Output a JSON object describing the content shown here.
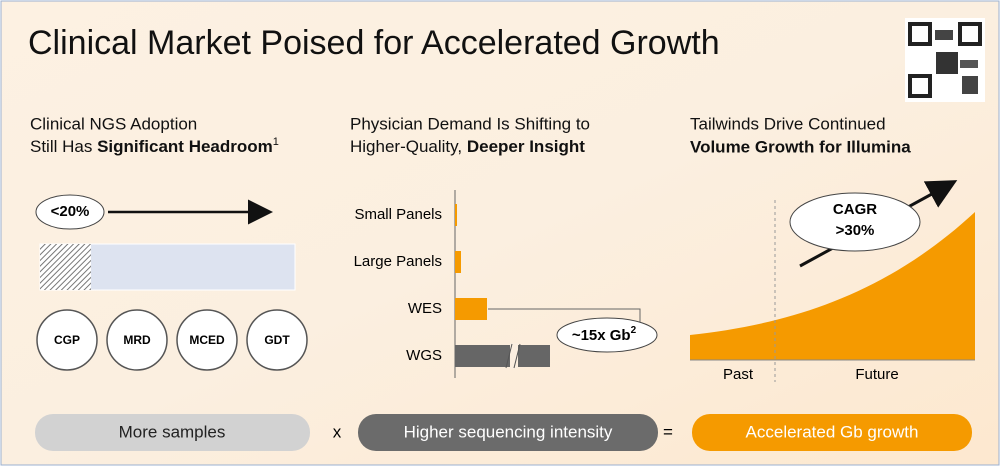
{
  "title": "Clinical Market Poised for Accelerated Growth",
  "left": {
    "heading": [
      "Clinical NGS Adoption",
      "Still Has "
    ],
    "heading_bold": "Significant Headroom",
    "footnote": "1",
    "adoption": {
      "label": "<20%",
      "value": 20
    },
    "applications": [
      "CGP",
      "MRD",
      "MCED",
      "GDT"
    ]
  },
  "middle": {
    "heading": [
      "Physician Demand Is Shifting to",
      "Higher-Quality, "
    ],
    "heading_bold": "Deeper Insight",
    "categories": [
      "Small Panels",
      "Large Panels",
      "WES",
      "WGS"
    ],
    "values": [
      2,
      6,
      32,
      95
    ],
    "color": "#f59a00",
    "highlight_color": "#666666",
    "callout": "~15x Gb",
    "callout_footnote": "2"
  },
  "right": {
    "heading": "Tailwinds Drive Continued",
    "heading_bold": "Volume Growth for Illumina",
    "callout": [
      "CAGR",
      ">30%"
    ],
    "past": "Past",
    "future": "Future"
  },
  "equation": {
    "term1": "More samples",
    "times": "x",
    "term2": "Higher sequencing intensity",
    "equals": "=",
    "result": "Accelerated Gb growth"
  }
}
